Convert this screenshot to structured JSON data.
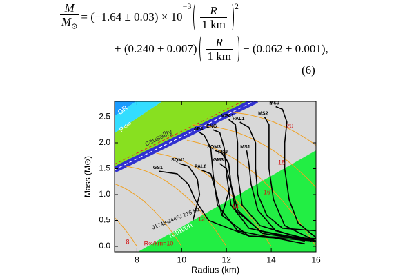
{
  "equation": {
    "lhs_numerator": "M",
    "lhs_denominator": "M",
    "lhs_denominator_sub": "⊙",
    "term1": "= (−1.64 ± 0.03) × 10",
    "term1_exponent": "−3",
    "frac1_numerator": "R",
    "frac1_denominator": "1 km",
    "frac1_power": "2",
    "term2": "+ (0.240 ± 0.007)",
    "frac2_numerator": "R",
    "frac2_denominator": "1 km",
    "term3": "− (0.062 ± 0.001),",
    "number": "(6)"
  },
  "chart_data": {
    "type": "line",
    "xlabel": "Radius (km)",
    "ylabel": "Mass (M⊙)",
    "xlim": [
      7,
      16
    ],
    "ylim": [
      -0.1,
      2.8
    ],
    "xticks": [
      8,
      10,
      12,
      14,
      16
    ],
    "yticks": [
      {
        "value": 0,
        "label": "0.0"
      },
      0.5,
      {
        "value": 1,
        "label": "1.0"
      },
      1.5,
      {
        "value": 2,
        "label": "2.0"
      },
      2.5
    ],
    "series": [
      {
        "name": "MS0",
        "color": "#000000",
        "x": [
          16,
          15.2,
          14.8,
          14.6,
          14.6,
          14.7,
          14.5,
          14.2
        ],
        "values": [
          0.17,
          0.45,
          0.9,
          1.5,
          2.0,
          2.4,
          2.65,
          2.7
        ]
      },
      {
        "name": "MS2",
        "color": "#000000",
        "x": [
          16,
          14.6,
          14.1,
          13.9,
          13.9,
          13.9,
          13.7
        ],
        "values": [
          0.1,
          0.4,
          0.9,
          1.5,
          2.0,
          2.35,
          2.5
        ]
      },
      {
        "name": "PAL1",
        "color": "#000000",
        "x": [
          16,
          14.5,
          13.8,
          13.4,
          13.3,
          13.3,
          13.0,
          12.6
        ],
        "values": [
          0.3,
          0.35,
          0.6,
          1.0,
          1.5,
          2.0,
          2.3,
          2.4
        ]
      },
      {
        "name": "MPA1",
        "color": "#000000",
        "x": [
          15.8,
          13.5,
          12.7,
          12.5,
          12.5,
          12.4,
          12.1
        ],
        "values": [
          0.1,
          0.4,
          0.8,
          1.4,
          2.0,
          2.35,
          2.45
        ]
      },
      {
        "name": "ENG",
        "color": "#000000",
        "x": [
          15.5,
          13.0,
          12.2,
          12.0,
          11.9,
          11.7,
          11.4
        ],
        "values": [
          0.1,
          0.35,
          0.8,
          1.4,
          1.9,
          2.2,
          2.25
        ]
      },
      {
        "name": "AP4",
        "color": "#000000",
        "x": [
          15.5,
          12.5,
          11.6,
          11.4,
          11.3,
          11.0,
          10.8
        ],
        "values": [
          0.05,
          0.3,
          0.8,
          1.4,
          1.9,
          2.15,
          2.2
        ]
      },
      {
        "name": "MS1",
        "color": "#000000",
        "x": [
          16,
          14.2,
          13.4,
          13.1,
          13.0,
          12.9
        ],
        "values": [
          0.1,
          0.3,
          0.7,
          1.2,
          1.6,
          1.85
        ]
      },
      {
        "name": "FSU",
        "color": "#000000",
        "x": [
          16,
          13.5,
          12.4,
          12.2,
          12.1,
          11.9
        ],
        "values": [
          0.1,
          0.3,
          0.7,
          1.2,
          1.6,
          1.75
        ]
      },
      {
        "name": "GM3",
        "color": "#000000",
        "x": [
          16,
          13.6,
          12.5,
          12.2,
          12.0,
          11.7
        ],
        "values": [
          0.1,
          0.25,
          0.7,
          1.2,
          1.5,
          1.6
        ]
      },
      {
        "name": "SQM3",
        "color": "#000000",
        "x": [
          11.8,
          12.2,
          12.1,
          11.8,
          11.5
        ],
        "values": [
          0.6,
          1.2,
          1.6,
          1.8,
          1.85
        ]
      },
      {
        "name": "PAL6",
        "color": "#000000",
        "x": [
          16,
          13.0,
          11.8,
          11.5,
          11.3,
          10.9
        ],
        "values": [
          0.1,
          0.2,
          0.6,
          1.1,
          1.4,
          1.47
        ]
      },
      {
        "name": "SQM1",
        "color": "#000000",
        "x": [
          10.5,
          10.8,
          10.7,
          10.3,
          9.9
        ],
        "values": [
          0.5,
          1.0,
          1.3,
          1.55,
          1.6
        ]
      },
      {
        "name": "GS1",
        "color": "#000000",
        "x": [
          16,
          13.0,
          11.2,
          10.6,
          10.3,
          9.8,
          9.0
        ],
        "values": [
          0.15,
          0.2,
          0.5,
          0.9,
          1.2,
          1.4,
          1.45
        ]
      }
    ],
    "annotations": [
      "GR",
      "P<∞",
      "causality",
      "rotation",
      "J1748-2446J 716 Hz"
    ],
    "contour_color": "#f0a020",
    "contour_labels": [
      8,
      {
        "value": 10,
        "label": "R∞/km=10"
      },
      12,
      14,
      16,
      18,
      20
    ]
  }
}
